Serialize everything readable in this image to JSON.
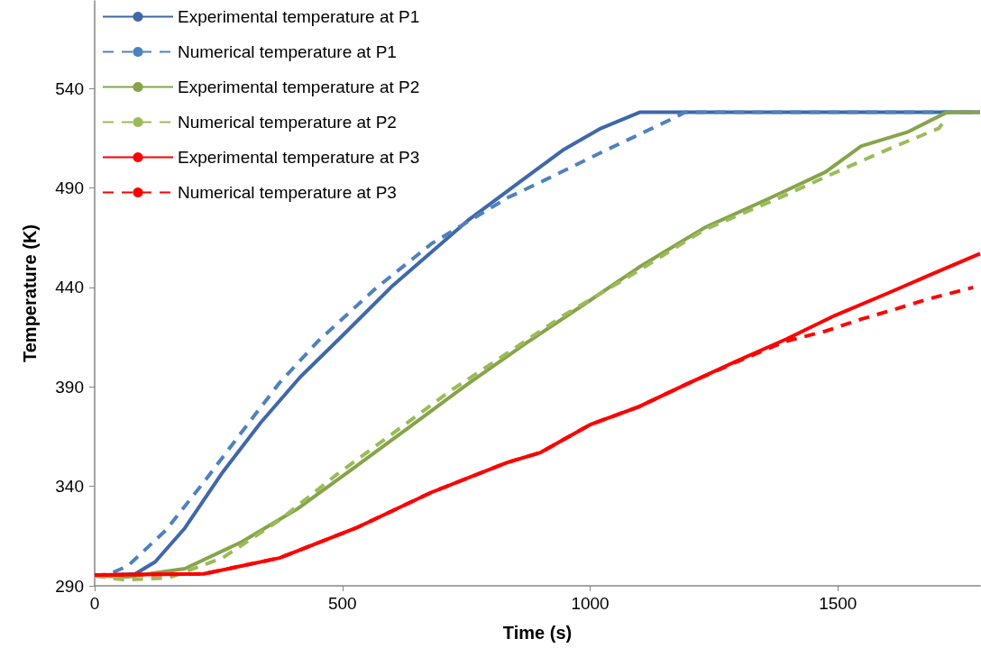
{
  "chart_data": {
    "type": "line",
    "xlabel": "Time (s)",
    "ylabel": "Temperature (K)",
    "xlim": [
      0,
      1787
    ],
    "ylim": [
      290,
      584
    ],
    "xticks": [
      0,
      500,
      1000,
      1500
    ],
    "yticks": [
      290,
      340,
      390,
      440,
      490,
      540
    ],
    "grid": false,
    "legend": "top left",
    "marker": "none",
    "series": [
      {
        "name": "Experimental temperature at P1",
        "color": "#4068a8",
        "line_style": "solid",
        "x": [
          0,
          82,
          122,
          182,
          258,
          335,
          415,
          493,
          602,
          755,
          869,
          945,
          1022,
          1100,
          1787
        ],
        "values": [
          295,
          296,
          302,
          319,
          347,
          372,
          395,
          414,
          441,
          474,
          495,
          509,
          520,
          528,
          528
        ]
      },
      {
        "name": "Numerical temperature at P1",
        "color": "#4f81bd",
        "line_style": "dashed",
        "x": [
          0,
          30,
          67,
          144,
          220,
          296,
          373,
          451,
          565,
          680,
          833,
          909,
          1024,
          1176,
          1191,
          1787
        ],
        "values": [
          295,
          296,
          300,
          318,
          342,
          367,
          392,
          413,
          439,
          462,
          485,
          494,
          508,
          526,
          528,
          528
        ]
      },
      {
        "name": "Experimental temperature at P2",
        "color": "#86a44a",
        "line_style": "solid",
        "x": [
          0,
          67,
          182,
          296,
          411,
          527,
          642,
          756,
          871,
          985,
          1098,
          1231,
          1364,
          1475,
          1547,
          1640,
          1720,
          1787
        ],
        "values": [
          295,
          294.5,
          298.6,
          312,
          329,
          350,
          371,
          392,
          412,
          431,
          450,
          470,
          485,
          498,
          511,
          518,
          528,
          528
        ]
      },
      {
        "name": "Numerical temperature at P2",
        "color": "#9bbb59",
        "line_style": "dashed",
        "x": [
          0,
          60,
          150,
          258,
          373,
          489,
          604,
          718,
          833,
          947,
          1062,
          1231,
          1382,
          1515,
          1607,
          1704,
          1715
        ],
        "values": [
          295,
          293,
          294,
          304,
          323,
          346,
          367,
          388,
          407,
          426,
          443,
          469,
          485,
          500,
          510,
          520,
          524
        ]
      },
      {
        "name": "Experimental temperature at P3",
        "color": "#ff0000",
        "line_style": "solid",
        "x": [
          0,
          220,
          373,
          527,
          680,
          833,
          900,
          1000,
          1098,
          1200,
          1296,
          1396,
          1495,
          1600,
          1693,
          1787
        ],
        "values": [
          295.4,
          296,
          304,
          319,
          337,
          352,
          357,
          371,
          380,
          392,
          403,
          414,
          426,
          437,
          447,
          457
        ]
      },
      {
        "name": "Numerical temperature at P3",
        "color": "#ff0000",
        "line_style": "dashed",
        "x": [
          0,
          220,
          373,
          527,
          680,
          833,
          900,
          1000,
          1098,
          1200,
          1300,
          1396,
          1475,
          1547,
          1615,
          1680,
          1773
        ],
        "values": [
          295.4,
          296,
          304,
          319,
          337,
          352,
          357,
          371,
          380,
          392,
          403,
          413,
          418,
          424,
          429,
          434,
          440
        ]
      }
    ]
  }
}
